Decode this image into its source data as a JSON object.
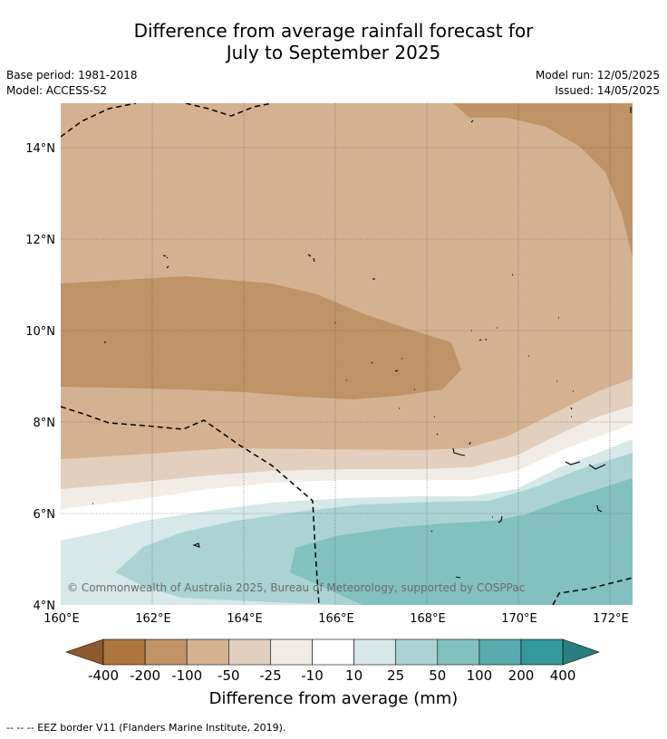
{
  "title_line1": "Difference from average rainfall forecast for",
  "title_line2": "July to September 2025",
  "base_period": "Base period: 1981-2018",
  "model": "Model: ACCESS-S2",
  "model_run": "Model run: 12/05/2025",
  "issued": "Issued: 14/05/2025",
  "copyright": "© Commonwealth of Australia 2025, Bureau of Meteorology, supported by COSPPac",
  "y_ticks": [
    "14°N",
    "12°N",
    "10°N",
    "8°N",
    "6°N",
    "4°N"
  ],
  "x_ticks": [
    "160°E",
    "162°E",
    "164°E",
    "166°E",
    "168°E",
    "170°E",
    "172°E"
  ],
  "colorbar": {
    "title": "Difference from average (mm)",
    "ticks": [
      "-400",
      "-200",
      "-100",
      "-50",
      "-25",
      "-10",
      "10",
      "25",
      "50",
      "100",
      "200",
      "400"
    ],
    "colors": [
      "#8c5a2e",
      "#ae763f",
      "#c09268",
      "#d4b291",
      "#e3cfbd",
      "#f2ece6",
      "#ffffff",
      "#d6e8e8",
      "#acd3d3",
      "#83c0c0",
      "#5aabad",
      "#35999a",
      "#2a7e7f"
    ]
  },
  "legend_note": "--  --  -- EEZ border V11 (Flanders Marine Institute, 2019)."
}
